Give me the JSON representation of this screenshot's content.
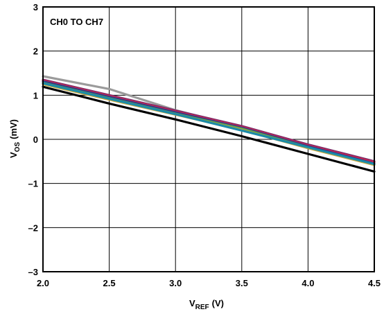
{
  "chart_data": {
    "type": "line",
    "title": "",
    "annotation": "CH0 TO CH7",
    "xlabel_main": "V",
    "xlabel_sub": "REF",
    "xlabel_unit": "(V)",
    "ylabel_main": "V",
    "ylabel_sub": "OS",
    "ylabel_unit": "(mV)",
    "xlim": [
      2.0,
      4.5
    ],
    "ylim": [
      -3,
      3
    ],
    "x_ticks": [
      "2.0",
      "2.5",
      "3.0",
      "3.5",
      "4.0",
      "4.5"
    ],
    "x_tick_values": [
      2.0,
      2.5,
      3.0,
      3.5,
      4.0,
      4.5
    ],
    "y_ticks": [
      "3",
      "2",
      "1",
      "0",
      "–1",
      "–2",
      "–3"
    ],
    "y_tick_values": [
      3,
      2,
      1,
      0,
      -1,
      -2,
      -3
    ],
    "grid": true,
    "series": [
      {
        "color": "#9b9b9b",
        "x": [
          2.0,
          2.5,
          3.0,
          3.5,
          4.0,
          4.5
        ],
        "y": [
          1.43,
          1.14,
          0.66,
          0.27,
          -0.12,
          -0.5
        ]
      },
      {
        "color": "#7b2a6a",
        "x": [
          2.0,
          2.5,
          3.0,
          3.5,
          4.0,
          4.5
        ],
        "y": [
          1.35,
          1.0,
          0.65,
          0.3,
          -0.12,
          -0.5
        ]
      },
      {
        "color": "#c9264e",
        "x": [
          2.0,
          2.5,
          3.0,
          3.5,
          4.0,
          4.5
        ],
        "y": [
          1.33,
          0.98,
          0.63,
          0.28,
          -0.14,
          -0.52
        ]
      },
      {
        "color": "#2a3a8c",
        "x": [
          2.0,
          2.5,
          3.0,
          3.5,
          4.0,
          4.5
        ],
        "y": [
          1.31,
          0.96,
          0.61,
          0.26,
          -0.16,
          -0.55
        ]
      },
      {
        "color": "#6aa34a",
        "x": [
          2.0,
          2.5,
          3.0,
          3.5,
          4.0,
          4.5
        ],
        "y": [
          1.28,
          0.93,
          0.58,
          0.24,
          -0.18,
          -0.57
        ]
      },
      {
        "color": "#c8a83c",
        "x": [
          2.0,
          2.5,
          3.0,
          3.5,
          4.0,
          4.5
        ],
        "y": [
          1.25,
          0.9,
          0.56,
          0.21,
          -0.2,
          -0.58
        ]
      },
      {
        "color": "#1a8aa8",
        "x": [
          2.0,
          2.5,
          3.0,
          3.5,
          4.0,
          4.5
        ],
        "y": [
          1.27,
          0.92,
          0.57,
          0.2,
          -0.18,
          -0.56
        ]
      },
      {
        "color": "#000000",
        "x": [
          2.0,
          2.5,
          3.0,
          3.5,
          4.0,
          4.5
        ],
        "y": [
          1.19,
          0.81,
          0.45,
          0.07,
          -0.33,
          -0.73
        ]
      }
    ]
  }
}
